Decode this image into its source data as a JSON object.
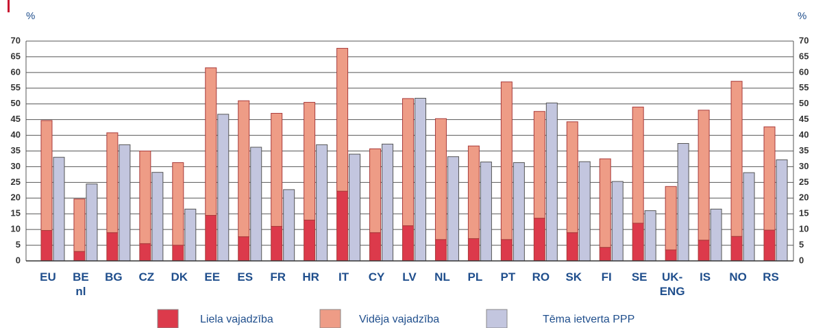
{
  "chart_data": {
    "type": "bar",
    "y_label": "%",
    "y2_label": "%",
    "categories": [
      "EU",
      "BE\nnl",
      "BG",
      "CZ",
      "DK",
      "EE",
      "ES",
      "FR",
      "HR",
      "IT",
      "CY",
      "LV",
      "NL",
      "PL",
      "PT",
      "RO",
      "SK",
      "FI",
      "SE",
      "UK-\nENG",
      "IS",
      "NO",
      "RS"
    ],
    "series": [
      {
        "name": "Liela vajadzība",
        "color": "#dc3a4b",
        "stack": "a",
        "values": [
          9.7,
          3,
          9,
          5.5,
          5,
          14.5,
          7.7,
          11,
          13,
          22.2,
          9,
          11.2,
          6.8,
          7.1,
          6.8,
          13.6,
          9,
          4.3,
          12,
          3.5,
          6.6,
          7.8,
          9.8
        ]
      },
      {
        "name": "Vidēja vajadzība",
        "color": "#ee9c86",
        "stack": "a",
        "values": [
          35,
          16.7,
          31.8,
          29.5,
          26.3,
          47,
          43.3,
          36,
          37.5,
          45.5,
          26.7,
          40.5,
          38.5,
          29.5,
          50.2,
          34,
          35.3,
          28.2,
          37,
          20.2,
          41.4,
          49.4,
          32.9
        ]
      },
      {
        "name": "Tēma ietverta PPP",
        "color": "#c3c6df",
        "stack": "b",
        "values": [
          33,
          24.5,
          37,
          28.2,
          16.5,
          46.7,
          36.2,
          22.7,
          37,
          34,
          37.2,
          51.8,
          33.2,
          31.5,
          31.3,
          50.3,
          31.6,
          25.3,
          16,
          37.4,
          16.5,
          28.1,
          32.2
        ]
      }
    ],
    "ylim": [
      0,
      70
    ],
    "yticks": [
      0,
      5,
      10,
      15,
      20,
      25,
      30,
      35,
      40,
      45,
      50,
      55,
      60,
      65,
      70
    ],
    "y2lim": [
      0,
      70
    ],
    "y2ticks": [
      0,
      5,
      10,
      15,
      20,
      25,
      30,
      35,
      40,
      45,
      50,
      55,
      60,
      65,
      70
    ],
    "grid": true,
    "legend": "bottom"
  }
}
